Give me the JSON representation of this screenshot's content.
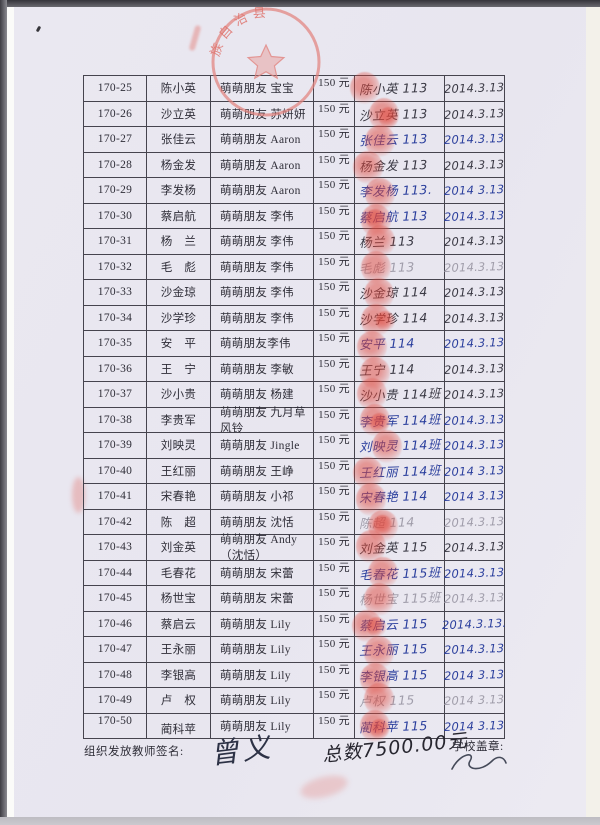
{
  "table": {
    "amount_all": "150 元",
    "rows": [
      {
        "id": "170-25",
        "name": "陈小英",
        "friend": "萌萌朋友 宝宝",
        "amount": "150 元",
        "signature": "陈小英 113",
        "date": "2014.3.13",
        "ink": "dark"
      },
      {
        "id": "170-26",
        "name": "沙立英",
        "friend": "萌萌朋友 苏妍妍",
        "amount": "150 元",
        "signature": "沙立英 113",
        "date": "2014.3.13",
        "ink": "dark"
      },
      {
        "id": "170-27",
        "name": "张佳云",
        "friend": "萌萌朋友 Aaron",
        "amount": "150 元",
        "signature": "张佳云 113",
        "date": "2014.3.13",
        "ink": "blue"
      },
      {
        "id": "170-28",
        "name": "杨金发",
        "friend": "萌萌朋友 Aaron",
        "amount": "150 元",
        "signature": "杨金发 113",
        "date": "2014.3.13",
        "ink": "dark"
      },
      {
        "id": "170-29",
        "name": "李发杨",
        "friend": "萌萌朋友 Aaron",
        "amount": "150 元",
        "signature": "李发杨 113.",
        "date": "2014 3.13",
        "ink": "blue"
      },
      {
        "id": "170-30",
        "name": "蔡启航",
        "friend": "萌萌朋友 李伟",
        "amount": "150 元",
        "signature": "蔡启航 113",
        "date": "2014.3.13",
        "ink": "blue"
      },
      {
        "id": "170-31",
        "name": "杨　兰",
        "friend": "萌萌朋友 李伟",
        "amount": "150 元",
        "signature": "杨兰 113",
        "date": "2014.3.13",
        "ink": "dark"
      },
      {
        "id": "170-32",
        "name": "毛　彪",
        "friend": "萌萌朋友 李伟",
        "amount": "150 元",
        "signature": "毛彪 113",
        "date": "2014.3.13",
        "ink": "faint"
      },
      {
        "id": "170-33",
        "name": "沙金琼",
        "friend": "萌萌朋友 李伟",
        "amount": "150 元",
        "signature": "沙金琼 114",
        "date": "2014.3.13",
        "ink": "dark"
      },
      {
        "id": "170-34",
        "name": "沙学珍",
        "friend": "萌萌朋友 李伟",
        "amount": "150 元",
        "signature": "沙学珍 114",
        "date": "2014.3.13",
        "ink": "dark"
      },
      {
        "id": "170-35",
        "name": "安　平",
        "friend": "萌萌朋友李伟",
        "amount": "150 元",
        "signature": "安平 114",
        "date": "2014.3.13",
        "ink": "blue"
      },
      {
        "id": "170-36",
        "name": "王　宁",
        "friend": "萌萌朋友 李敏",
        "amount": "150 元",
        "signature": "王宁 114",
        "date": "2014.3.13",
        "ink": "dark"
      },
      {
        "id": "170-37",
        "name": "沙小贵",
        "friend": "萌萌朋友 杨建",
        "amount": "150 元",
        "signature": "沙小贵 114班",
        "date": "2014.3.13",
        "ink": "dark"
      },
      {
        "id": "170-38",
        "name": "李贵军",
        "friend": "萌萌朋友 九月草风铃",
        "amount": "150 元",
        "signature": "李贵军 114班",
        "date": "2014.3.13",
        "ink": "blue"
      },
      {
        "id": "170-39",
        "name": "刘映灵",
        "friend": "萌萌朋友 Jingle",
        "amount": "150 元",
        "signature": "刘映灵 114班",
        "date": "2014.3.13",
        "ink": "blue"
      },
      {
        "id": "170-40",
        "name": "王红丽",
        "friend": "萌萌朋友 王峥",
        "amount": "150 元",
        "signature": "王红丽 114班",
        "date": "2014 3.13",
        "ink": "blue"
      },
      {
        "id": "170-41",
        "name": "宋春艳",
        "friend": "萌萌朋友 小祁",
        "amount": "150 元",
        "signature": "宋春艳 114",
        "date": "2014 3.13",
        "ink": "blue"
      },
      {
        "id": "170-42",
        "name": "陈　超",
        "friend": "萌萌朋友 沈恬",
        "amount": "150 元",
        "signature": "陈超 114",
        "date": "2014.3.13",
        "ink": "faint"
      },
      {
        "id": "170-43",
        "name": "刘金英",
        "friend": "萌萌朋友 Andy （沈恬）",
        "amount": "150 元",
        "signature": "刘金英 115",
        "date": "2014.3.13",
        "ink": "dark"
      },
      {
        "id": "170-44",
        "name": "毛春花",
        "friend": "萌萌朋友 宋蕾",
        "amount": "150 元",
        "signature": "毛春花 115班",
        "date": "2014.3.13",
        "ink": "blue"
      },
      {
        "id": "170-45",
        "name": "杨世宝",
        "friend": "萌萌朋友 宋蕾",
        "amount": "150 元",
        "signature": "杨世宝 115班",
        "date": "2014.3.13",
        "ink": "faint"
      },
      {
        "id": "170-46",
        "name": "蔡启云",
        "friend": "萌萌朋友 Lily",
        "amount": "150 元",
        "signature": "蔡启云 115",
        "date": "2014.3.13.",
        "ink": "blue"
      },
      {
        "id": "170-47",
        "name": "王永丽",
        "friend": "萌萌朋友 Lily",
        "amount": "150 元",
        "signature": "王永丽 115",
        "date": "2014.3.13",
        "ink": "blue"
      },
      {
        "id": "170-48",
        "name": "李银高",
        "friend": "萌萌朋友 Lily",
        "amount": "150 元",
        "signature": "李银高 115",
        "date": "2014 3.13",
        "ink": "blue"
      },
      {
        "id": "170-49",
        "name": "卢　权",
        "friend": "萌萌朋友 Lily",
        "amount": "150 元",
        "signature": "卢权 115",
        "date": "2014 3.13",
        "ink": "faint"
      },
      {
        "id": "170-50",
        "name": "蔺科苹",
        "friend": "萌萌朋友 Lily",
        "amount": "150 元",
        "signature": "蔺科苹 115",
        "date": "2014 3.13",
        "ink": "blue"
      }
    ]
  },
  "footer": {
    "teacher_label": "组织发放教师签名:",
    "teacher_signature": "曾义",
    "total_note": "总数7500.00元",
    "school_seal_label": "学校盖章:"
  },
  "seal": {
    "arc_text": "族自治县",
    "description": "red circular official seal with star, partially faded"
  },
  "colors": {
    "paper": "#e9e7f0",
    "table_line": "#46444e",
    "printed_ink": "#2f2e38",
    "hand_blue": "#2b3f9d",
    "hand_dark": "#3a3944",
    "hand_faint": "#a09daa",
    "stamp_red": "#e0463a"
  }
}
